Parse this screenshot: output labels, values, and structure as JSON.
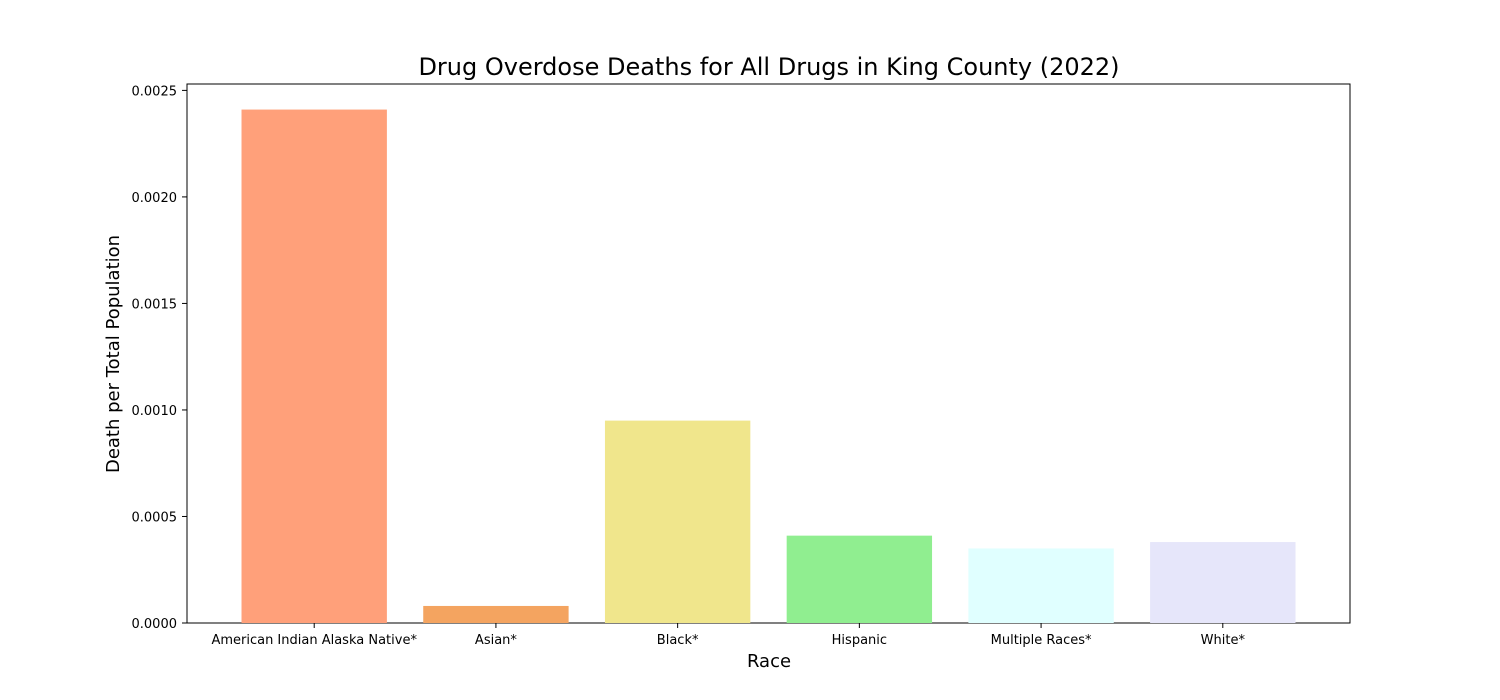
{
  "chart_data": {
    "type": "bar",
    "title": "Drug Overdose Deaths for All Drugs in King County (2022)",
    "xlabel": "Race",
    "ylabel": "Death per Total Population",
    "categories": [
      "American Indian Alaska Native*",
      "Asian*",
      "Black*",
      "Hispanic",
      "Multiple Races*",
      "White*"
    ],
    "values": [
      0.00241,
      8e-05,
      0.00095,
      0.00041,
      0.00035,
      0.00038
    ],
    "colors": [
      "#ffa07a",
      "#f4a460",
      "#f0e68c",
      "#90ee90",
      "#e0ffff",
      "#e6e6fa"
    ],
    "ylim": [
      0,
      0.00253
    ],
    "yticks": [
      0,
      0.0005,
      0.001,
      0.0015,
      0.002,
      0.0025
    ],
    "ytick_labels": [
      "0.0000",
      "0.0005",
      "0.0010",
      "0.0015",
      "0.0020",
      "0.0025"
    ],
    "grid": false,
    "legend": "none"
  }
}
